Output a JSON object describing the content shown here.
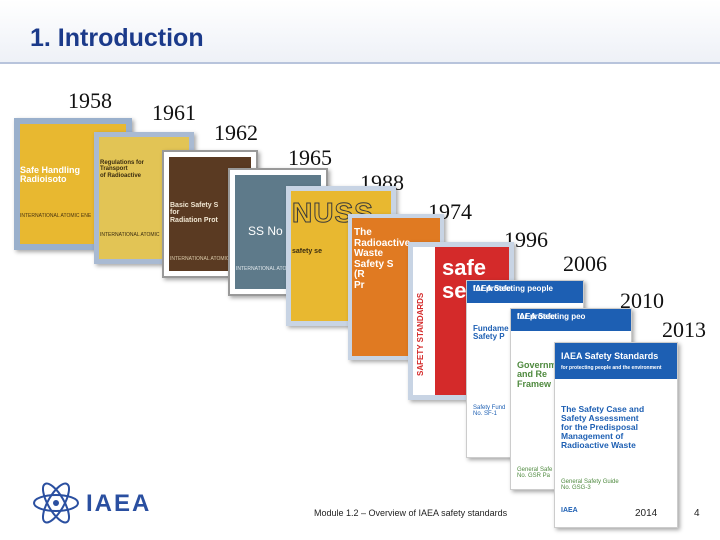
{
  "title": "1. Introduction",
  "years": [
    "1958",
    "1961",
    "1962",
    "1965",
    "1988",
    "1974",
    "1996",
    "2006",
    "2010",
    "2013"
  ],
  "covers": {
    "c1958": "Safe Handling\nRadioisoto",
    "c1958_sub": "INTERNATIONAL ATOMIC ENE",
    "c1961": "Regulations for\nTransport\nof Radioactive",
    "c1961_sub": "INTERNATIONAL ATOMIC",
    "c1962": "Basic Safety S\nfor\nRadiation Prot",
    "c1962_sub": "INTERNATIONAL ATOMIC",
    "c1965_sub": "INTERNATIONAL ATOMIC",
    "ss_no": "SS No",
    "c1988": "NUSS",
    "c1988_sub": "safety se",
    "c1974": "The\nRadioactive Waste\nSafety S\n(R\nPr",
    "c1996_side": "SAFETY STANDARDS",
    "c1996": "safe\nse",
    "c2006_band": "IAEA Safe",
    "c2006_tag": "for protecting people",
    "c2006": "Fundame\nSafety P",
    "c2006_series": "Safety Fund\nNo. SF-1",
    "c2010_band": "IAEA Safe",
    "c2010_tag": "for protecting peo",
    "c2010": "Governm\nand Re\nFramew",
    "c2010_series": "General Safe\nNo. GSR Pa",
    "c2013_band": "IAEA Safety Standards",
    "c2013_tag": "for protecting people and the environment",
    "c2013": "The Safety Case and\nSafety Assessment\nfor the Predisposal\nManagement of\nRadioactive Waste",
    "c2013_series": "General Safety Guide\nNo. GSG-3",
    "iaea_mark": "IAEA"
  },
  "footer": {
    "logo": "IAEA",
    "module_text": "Module 1.2 – Overview of IAEA safety standards",
    "year": "2014",
    "page": "4"
  },
  "colors": {
    "title": "#1b3a8a",
    "iaea_blue": "#1d5fb3",
    "yellow": "#e8b830",
    "green": "#4f8a3f",
    "brown": "#5a3a22",
    "red": "#d42a2a"
  }
}
